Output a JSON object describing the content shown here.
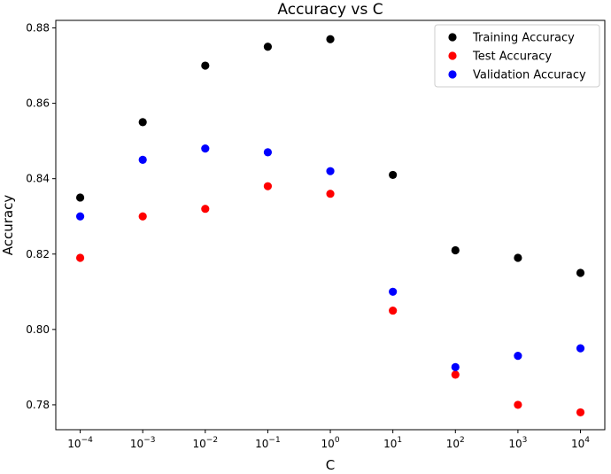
{
  "chart_data": {
    "type": "scatter",
    "title": "Accuracy vs C",
    "xlabel": "C",
    "ylabel": "Accuracy",
    "x_scale": "log",
    "x": [
      0.0001,
      0.001,
      0.01,
      0.1,
      1,
      10,
      100,
      1000,
      10000
    ],
    "x_tick_labels": [
      {
        "base": "10",
        "exp": "−4"
      },
      {
        "base": "10",
        "exp": "−3"
      },
      {
        "base": "10",
        "exp": "−2"
      },
      {
        "base": "10",
        "exp": "−1"
      },
      {
        "base": "10",
        "exp": "0"
      },
      {
        "base": "10",
        "exp": "1"
      },
      {
        "base": "10",
        "exp": "2"
      },
      {
        "base": "10",
        "exp": "3"
      },
      {
        "base": "10",
        "exp": "4"
      }
    ],
    "y_ticks": [
      "0.78",
      "0.80",
      "0.82",
      "0.84",
      "0.86",
      "0.88"
    ],
    "ylim": [
      0.7734,
      0.882
    ],
    "xlim": [
      4.07e-05,
      24500
    ],
    "grid": false,
    "legend_position": "top-right",
    "series": [
      {
        "name": "Training Accuracy",
        "color": "#000000",
        "values": [
          0.835,
          0.855,
          0.87,
          0.875,
          0.877,
          0.841,
          0.821,
          0.819,
          0.815
        ]
      },
      {
        "name": "Test Accuracy",
        "color": "#ff0000",
        "values": [
          0.819,
          0.83,
          0.832,
          0.838,
          0.836,
          0.805,
          0.788,
          0.78,
          0.778
        ]
      },
      {
        "name": "Validation Accuracy",
        "color": "#0000ff",
        "values": [
          0.83,
          0.845,
          0.848,
          0.847,
          0.842,
          0.81,
          0.79,
          0.793,
          0.795
        ]
      }
    ]
  }
}
